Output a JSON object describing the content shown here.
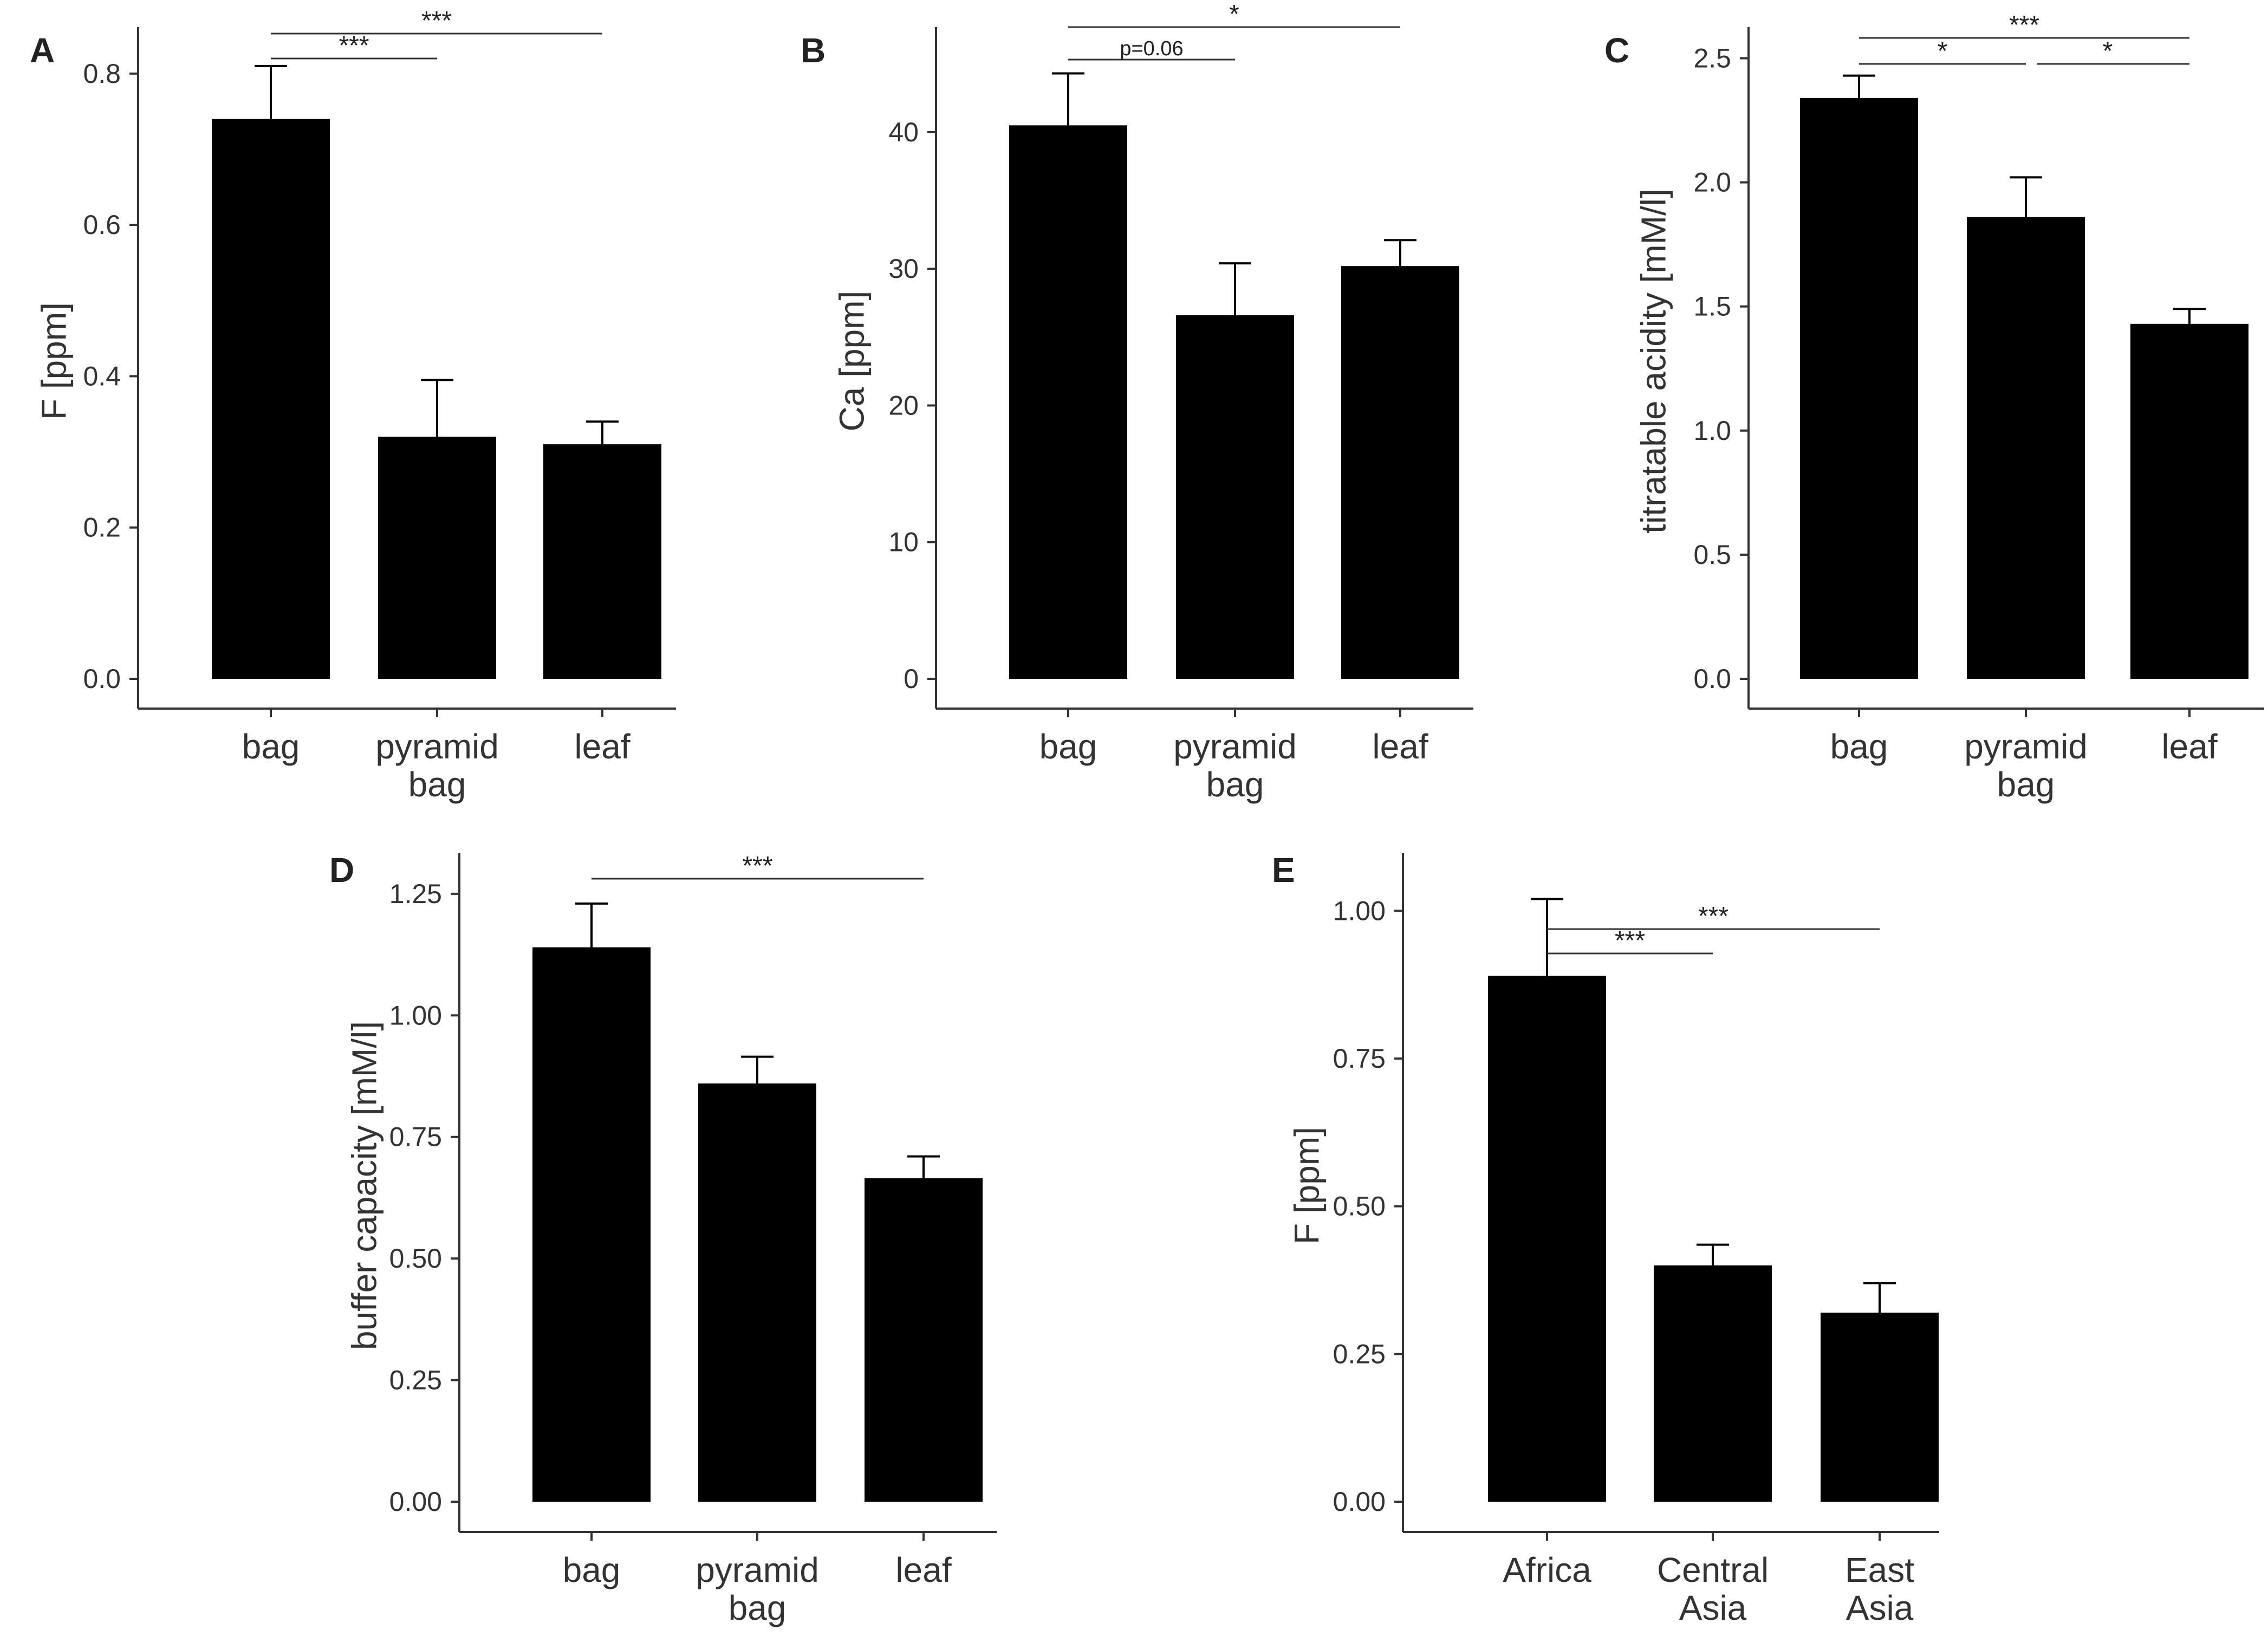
{
  "chart_data": [
    {
      "panel": "A",
      "type": "bar",
      "categories": [
        [
          "bag"
        ],
        [
          "pyramid",
          "bag"
        ],
        [
          "leaf"
        ]
      ],
      "values": [
        0.74,
        0.32,
        0.31
      ],
      "error": [
        0.07,
        0.075,
        0.03
      ],
      "ylabel": "F [ppm]",
      "ylim": [
        0,
        0.84
      ],
      "yticks": [
        0.0,
        0.2,
        0.4,
        0.6,
        0.8
      ],
      "tick_decimals": 1,
      "significance": [
        {
          "from": 0,
          "to": 1,
          "label": "***"
        },
        {
          "from": 0,
          "to": 2,
          "label": "***"
        }
      ]
    },
    {
      "panel": "B",
      "type": "bar",
      "categories": [
        [
          "bag"
        ],
        [
          "pyramid",
          "bag"
        ],
        [
          "leaf"
        ]
      ],
      "values": [
        40.5,
        26.6,
        30.2
      ],
      "error": [
        3.8,
        3.8,
        1.9
      ],
      "ylabel": "Ca [ppm]",
      "ylim": [
        0,
        46.5
      ],
      "yticks": [
        0,
        10,
        20,
        30,
        40
      ],
      "tick_decimals": 0,
      "significance": [
        {
          "from": 0,
          "to": 1,
          "label": "p=0.06"
        },
        {
          "from": 0,
          "to": 2,
          "label": "*"
        }
      ]
    },
    {
      "panel": "C",
      "type": "bar",
      "categories": [
        [
          "bag"
        ],
        [
          "pyramid",
          "bag"
        ],
        [
          "leaf"
        ]
      ],
      "values": [
        2.34,
        1.86,
        1.43
      ],
      "error": [
        0.09,
        0.16,
        0.06
      ],
      "ylabel": "titratable acidity [mM/l]",
      "ylim": [
        0,
        2.56
      ],
      "yticks": [
        0.0,
        0.5,
        1.0,
        1.5,
        2.0,
        2.5
      ],
      "tick_decimals": 1,
      "significance": [
        {
          "from": 0,
          "to": 1,
          "label": "*"
        },
        {
          "from": 1,
          "to": 2,
          "label": "*"
        },
        {
          "from": 0,
          "to": 2,
          "label": "***"
        }
      ]
    },
    {
      "panel": "D",
      "type": "bar",
      "categories": [
        [
          "bag"
        ],
        [
          "pyramid",
          "bag"
        ],
        [
          "leaf"
        ]
      ],
      "values": [
        1.14,
        0.86,
        0.665
      ],
      "error": [
        0.09,
        0.055,
        0.045
      ],
      "ylabel": "buffer capacity [mM/l]",
      "ylim": [
        0,
        1.3
      ],
      "yticks": [
        0.0,
        0.25,
        0.5,
        0.75,
        1.0,
        1.25
      ],
      "tick_decimals": 2,
      "significance": [
        {
          "from": 0,
          "to": 2,
          "label": "***"
        }
      ]
    },
    {
      "panel": "E",
      "type": "bar",
      "categories": [
        [
          "Africa"
        ],
        [
          "Central",
          "Asia"
        ],
        [
          "East",
          "Asia"
        ]
      ],
      "values": [
        0.89,
        0.4,
        0.32
      ],
      "error": [
        0.13,
        0.035,
        0.05
      ],
      "ylabel": "F [ppm]",
      "ylim": [
        0,
        1.07
      ],
      "yticks": [
        0.0,
        0.25,
        0.5,
        0.75,
        1.0
      ],
      "tick_decimals": 2,
      "significance": [
        {
          "from": 0,
          "to": 1,
          "label": "***"
        },
        {
          "from": 0,
          "to": 2,
          "label": "***"
        }
      ]
    }
  ],
  "colors": {
    "bar": "#000000",
    "axis": "#333333",
    "text": "#333333"
  }
}
